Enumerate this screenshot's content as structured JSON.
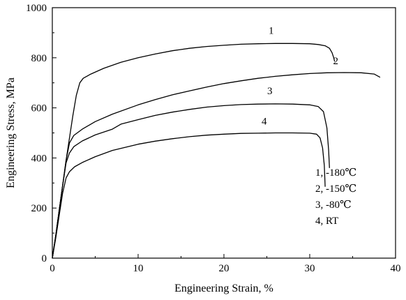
{
  "chart_data": {
    "type": "line",
    "xlabel": "Engineering Strain, %",
    "ylabel": "Engineering Stress, MPa",
    "xlim": [
      0,
      40
    ],
    "ylim": [
      0,
      1000
    ],
    "x_ticks": [
      0,
      10,
      20,
      30,
      40
    ],
    "y_ticks": [
      0,
      200,
      400,
      600,
      800,
      1000
    ],
    "grid": false,
    "legend_position": "bottom-right",
    "line_color": "#000000",
    "series": [
      {
        "label": "1",
        "legend_text": "1, -180℃",
        "x": [
          0,
          0.4,
          0.8,
          1.2,
          1.6,
          2.0,
          2.4,
          2.8,
          3.2,
          3.6,
          4.5,
          6,
          8,
          10,
          12,
          14,
          16,
          18,
          20,
          22,
          24,
          26,
          28,
          30,
          31,
          31.8,
          32.3,
          32.6,
          32.8,
          32.9
        ],
        "y": [
          0,
          90,
          190,
          290,
          390,
          480,
          570,
          650,
          700,
          718,
          735,
          758,
          782,
          800,
          815,
          828,
          838,
          845,
          850,
          854,
          856,
          857,
          857,
          856,
          853,
          848,
          838,
          820,
          800,
          785
        ]
      },
      {
        "label": "2",
        "legend_text": "2, -150℃",
        "x": [
          0,
          0.4,
          0.8,
          1.2,
          1.6,
          2.0,
          2.5,
          3.5,
          5,
          7,
          10,
          12,
          14,
          16,
          18,
          20,
          22,
          24,
          26,
          28,
          30,
          32,
          34,
          36,
          37.5,
          38.2
        ],
        "y": [
          0,
          90,
          190,
          290,
          390,
          460,
          490,
          515,
          545,
          575,
          612,
          633,
          652,
          668,
          683,
          697,
          708,
          718,
          726,
          732,
          737,
          740,
          741,
          740,
          735,
          722
        ]
      },
      {
        "label": "3",
        "legend_text": "3, -80℃",
        "x": [
          0,
          0.4,
          0.8,
          1.2,
          1.6,
          2.0,
          2.5,
          3.5,
          5,
          7,
          8,
          10,
          12,
          14,
          16,
          18,
          20,
          22,
          24,
          26,
          28,
          30,
          31,
          31.6,
          32,
          32.2,
          32.3
        ],
        "y": [
          0,
          90,
          190,
          290,
          380,
          420,
          445,
          468,
          492,
          515,
          535,
          553,
          570,
          583,
          594,
          603,
          609,
          613,
          615,
          616,
          615,
          612,
          605,
          585,
          520,
          430,
          360
        ]
      },
      {
        "label": "4",
        "legend_text": "4, RT",
        "x": [
          0,
          0.4,
          0.8,
          1.2,
          1.6,
          2.0,
          2.6,
          3.5,
          5,
          7,
          10,
          12,
          14,
          16,
          18,
          20,
          22,
          24,
          26,
          28,
          30,
          30.8,
          31.2,
          31.5,
          31.7,
          31.8
        ],
        "y": [
          0,
          80,
          170,
          260,
          320,
          345,
          365,
          382,
          405,
          430,
          455,
          467,
          477,
          485,
          491,
          495,
          498,
          499,
          500,
          500,
          499,
          495,
          480,
          440,
          370,
          285
        ]
      }
    ]
  }
}
